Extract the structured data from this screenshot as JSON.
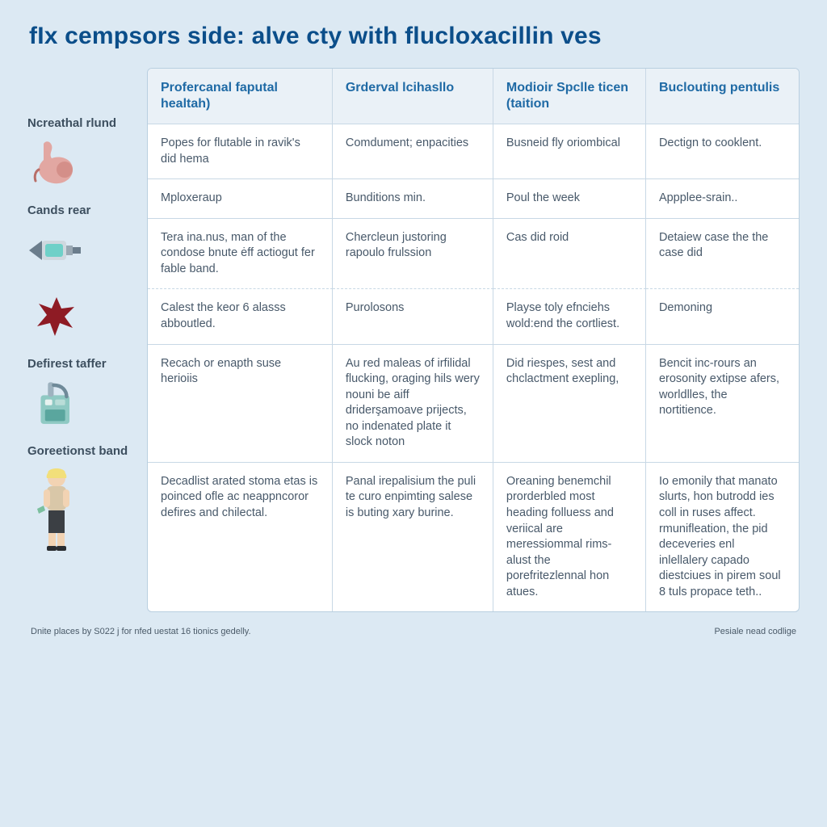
{
  "title": "fIx cempsors side: alve cty with flucloxacillin ves",
  "colors": {
    "page_bg": "#dce9f3",
    "table_bg": "#ffffff",
    "header_bg": "#eaf1f7",
    "border": "#b9cfe0",
    "cell_border": "#c8d8e5",
    "title_color": "#0b4e8a",
    "th_color": "#1f6aa5",
    "body_text": "#48596a",
    "side_label": "#3d4f5f"
  },
  "typography": {
    "title_pt": 30,
    "title_weight": 700,
    "th_pt": 16,
    "th_weight": 700,
    "td_pt": 14.5,
    "side_label_pt": 15,
    "side_label_weight": 700,
    "footer_pt": 11
  },
  "table": {
    "type": "table",
    "col_widths_fr": [
      1.15,
      1.0,
      0.95,
      0.95
    ],
    "columns": [
      "Profercanal faputal healtah)",
      "Grderval lcihasllo",
      "Modioir Spclle ticen (taition",
      "Buclouting pentulis"
    ],
    "rows": [
      {
        "dashed": false,
        "cells": [
          "Popes for flutable in ravik's did hema",
          "Comdument; enpacities",
          "Busneid fly oriombical",
          "Dectign to cooklent."
        ]
      },
      {
        "dashed": false,
        "cells": [
          "Mploxeraup",
          "Bunditions min.",
          "Poul the week",
          "Appplee-srain.."
        ]
      },
      {
        "dashed": false,
        "cells": [
          "Tera ina.nus, man of the condose bnute ėff actiogut fer fable band.",
          "Chercleun justoring rapoulo frulssion",
          "Cas did roid",
          "Detaiew case the the case did"
        ]
      },
      {
        "dashed": true,
        "cells": [
          "Calest the keor 6 alasss abboutled.",
          "Purolosons",
          "Playse toly efnciehs wold:end the cortliest.",
          "Demoning"
        ]
      },
      {
        "dashed": false,
        "cells": [
          "Recach or enapth suse herioiis",
          "Au red maleas of irfilidal flucking, oraging hils wery nouni be aiff driderşamoave prijects, no indenated plate it slock noton",
          "Did riespes, sest and chclactment exepling,",
          "Bencit inc-rours an erosonity extipse afers, worldlles, the nortitience."
        ]
      },
      {
        "dashed": false,
        "cells": [
          "Decadlist arated stoma etas is poinced ofle ac neappncoror defires and chilectal.",
          "Panal irepalisium the puli te curo enpimting salese is buting xary burine.",
          "Oreaning benemchil prorderbled most heading folluess and veriical are meressiommal rims-alust the porefritezlennal hon atues.",
          "Io emonily that manato slurts, hon butrodd ies coll in ruses affect. rmunifleation, the pid deceveries enl inlellalery capado diestciues in pirem soul 8 tuls propace teth.."
        ]
      }
    ]
  },
  "sidebar": {
    "items": [
      {
        "label": "Ncreathal rlund",
        "icon": "stomach-icon"
      },
      {
        "label": "Cands rear",
        "icon": "syringe-icon"
      },
      {
        "label": "",
        "icon": "splat-icon"
      },
      {
        "label": "Defirest taffer",
        "icon": "machine-icon"
      },
      {
        "label": "Goreetionst band",
        "icon": "person-icon"
      }
    ]
  },
  "footer": {
    "left": "Dnite places by S022 j for nfed uestat 16 tionics gedelly.",
    "right": "Pesiale nead codlige"
  }
}
